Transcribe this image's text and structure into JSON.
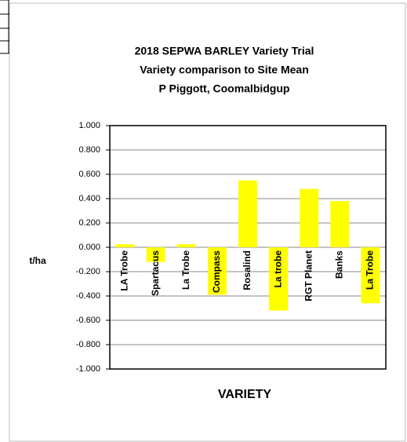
{
  "chart_data": {
    "type": "bar",
    "title": [
      "2018 SEPWA BARLEY Variety Trial",
      "Variety comparison to Site Mean",
      "P Piggott, Coomalbidgup"
    ],
    "ylabel": "t/ha",
    "xlabel": "VARIETY",
    "categories": [
      "LA Trobe",
      "Spartacus",
      "La Trobe",
      "Compass",
      "Rosalind",
      "La trobe",
      "RGT Planet",
      "Banks",
      "La Trobe"
    ],
    "values": [
      0.025,
      -0.12,
      0.025,
      -0.39,
      0.55,
      -0.52,
      0.48,
      0.38,
      -0.46
    ],
    "color": "#ffff00",
    "ylim": [
      -1,
      1
    ],
    "yticks": [
      {
        "value": 1,
        "label": "1.000"
      },
      {
        "value": 0.8,
        "label": "0.800"
      },
      {
        "value": 0.6,
        "label": "0.600"
      },
      {
        "value": 0.4,
        "label": "0.400"
      },
      {
        "value": 0.2,
        "label": "0.200"
      },
      {
        "value": 0,
        "label": "0.000"
      },
      {
        "value": -0.2,
        "label": "-0.200"
      },
      {
        "value": -0.4,
        "label": "-0.400"
      },
      {
        "value": -0.6,
        "label": "-0.600"
      },
      {
        "value": -0.8,
        "label": "-0.800"
      },
      {
        "value": -1,
        "label": "-1.000"
      }
    ],
    "grid": true
  }
}
